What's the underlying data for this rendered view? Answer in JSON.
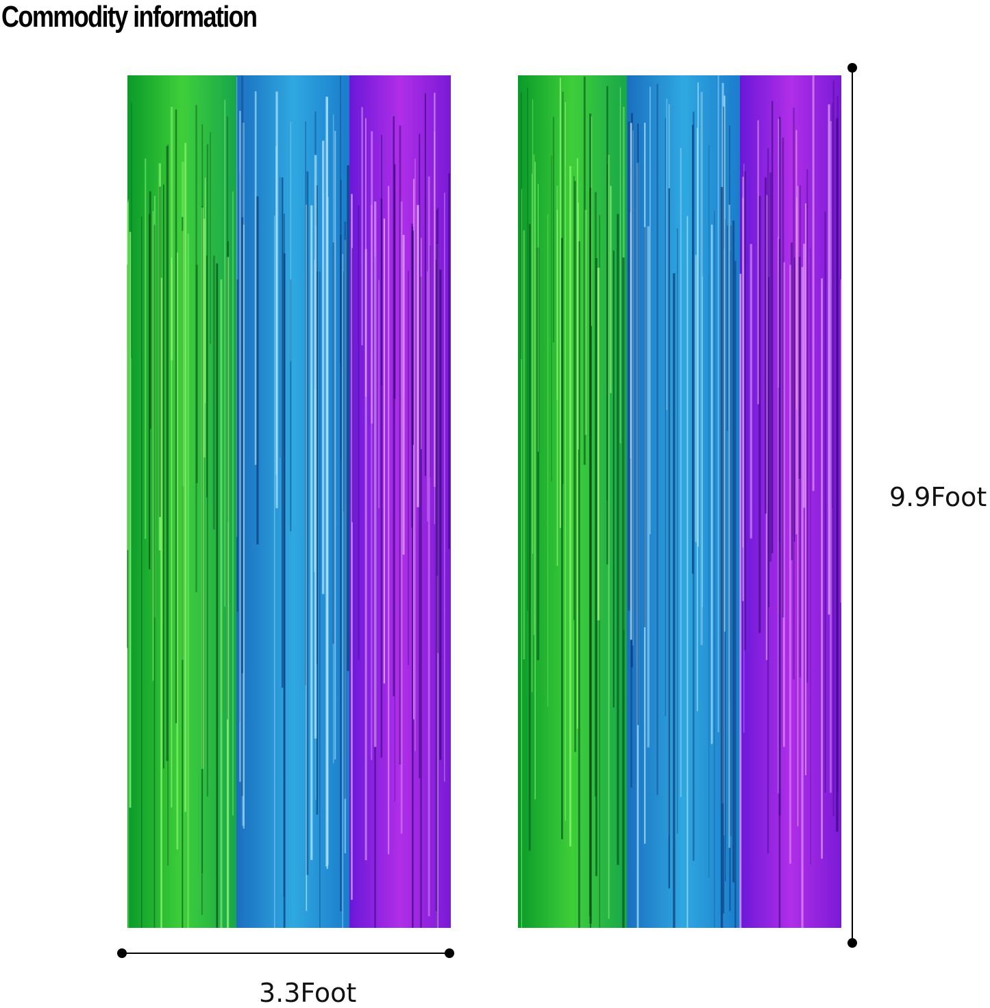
{
  "header": {
    "title": "Commodity information"
  },
  "dimensions": {
    "width_label": "3.3Foot",
    "height_label": "9.9Foot"
  }
}
